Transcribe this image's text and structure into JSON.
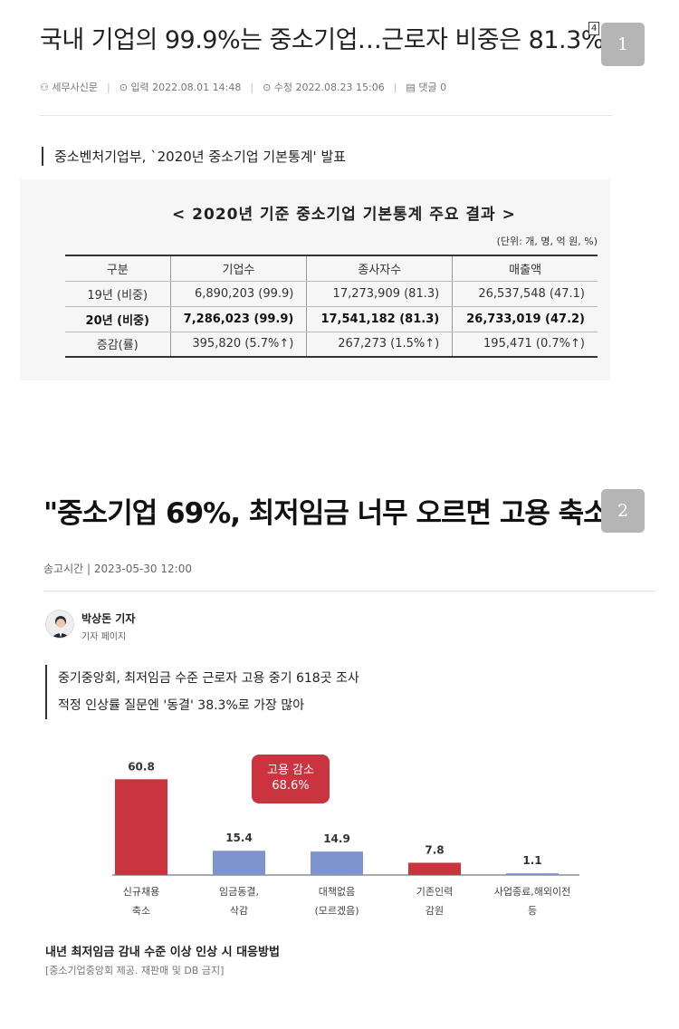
{
  "article1": {
    "title": "국내 기업의 99.9%는 중소기업…근로자 비중은 81.3%",
    "footnote_marker": "4",
    "page_badge": "1",
    "meta": {
      "author": "세무사신문",
      "published": "입력 2022.08.01 14:48",
      "updated": "수정 2022.08.23 15:06",
      "comments": "댓글 0"
    },
    "subtitle": "중소벤처기업부, `2020년 중소기업 기본통계' 발표",
    "table_title": "< 2020년 기준 중소기업 기본통계 주요 결과 >",
    "table_unit": "(단위: 개, 명, 억 원, %)",
    "table": {
      "headers": [
        "구분",
        "기업수",
        "종사자수",
        "매출액"
      ],
      "rows": [
        {
          "label": "19년 (비중)",
          "cells": [
            "6,890,203 (99.9)",
            "17,273,909 (81.3)",
            "26,537,548 (47.1)"
          ]
        },
        {
          "label": "20년 (비중)",
          "cells": [
            "7,286,023 (99.9)",
            "17,541,182 (81.3)",
            "26,733,019 (47.2)"
          ]
        },
        {
          "label": "증감(률)",
          "cells": [
            "395,820 (5.7%↑)",
            "267,273 (1.5%↑)",
            "195,471 (0.7%↑)"
          ]
        }
      ]
    }
  },
  "article2": {
    "title": "\"중소기업 69%, 최저임금 너무 오르면 고용 축소\"",
    "footnote_marker": "5",
    "page_badge": "2",
    "timestamp": "송고시간 | 2023-05-30 12:00",
    "reporter_name": "박상돈 기자",
    "reporter_page": "기자 페이지",
    "summary": [
      "중기중앙회, 최저임금 수준 근로자 고용 중기 618곳 조사",
      "적정 인상률 질문엔 '동결' 38.3%로 가장 많아"
    ],
    "callout": {
      "line1": "고용 감소",
      "line2": "68.6%"
    },
    "caption": "내년 최저임금 감내 수준 이상 인상 시 대응방법",
    "source": "[중소기업중앙회 제공. 재판매 및 DB 금지]"
  },
  "chart_data": {
    "type": "bar",
    "categories": [
      [
        "신규채용",
        "축소"
      ],
      [
        "임금동결,",
        "삭감"
      ],
      [
        "대책없음",
        "(모르겠음)"
      ],
      [
        "기존인력",
        "감원"
      ],
      [
        "사업종료,해외이전",
        "등"
      ]
    ],
    "values": [
      60.8,
      15.4,
      14.9,
      7.8,
      1.1
    ],
    "value_labels": [
      "60.8",
      "15.4",
      "14.9",
      "7.8",
      "1.1"
    ],
    "colors": [
      "#c9343f",
      "#7f93cf",
      "#7f93cf",
      "#c9343f",
      "#7f93cf"
    ],
    "ylim": [
      0,
      65
    ],
    "grid": false
  }
}
